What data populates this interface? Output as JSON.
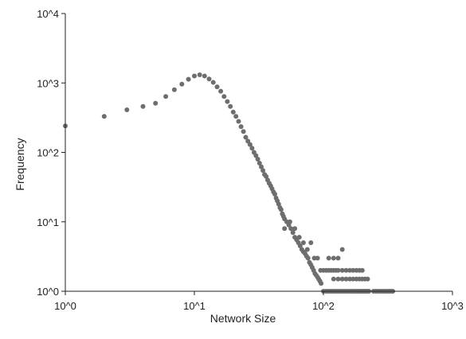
{
  "chart_data": {
    "type": "scatter",
    "title": "",
    "xlabel": "Network Size",
    "ylabel": "Frequency",
    "xscale": "log",
    "yscale": "log",
    "xlim": [
      1,
      1000
    ],
    "ylim": [
      1,
      10000
    ],
    "x_ticks": [
      {
        "value": 1,
        "label": "10^0"
      },
      {
        "value": 10,
        "label": "10^1"
      },
      {
        "value": 100,
        "label": "10^2"
      },
      {
        "value": 1000,
        "label": "10^3"
      }
    ],
    "y_ticks": [
      {
        "value": 1,
        "label": "10^0"
      },
      {
        "value": 10,
        "label": "10^1"
      },
      {
        "value": 100,
        "label": "10^2"
      },
      {
        "value": 1000,
        "label": "10^3"
      },
      {
        "value": 10000,
        "label": "10^4"
      }
    ],
    "grid": false,
    "legend": "none",
    "marker_color": "#6e6e6e",
    "points": [
      [
        1,
        240
      ],
      [
        2,
        330
      ],
      [
        3,
        410
      ],
      [
        4,
        460
      ],
      [
        5,
        510
      ],
      [
        6,
        640
      ],
      [
        7,
        800
      ],
      [
        8,
        960
      ],
      [
        9,
        1130
      ],
      [
        10,
        1260
      ],
      [
        11,
        1310
      ],
      [
        12,
        1260
      ],
      [
        13,
        1140
      ],
      [
        14,
        1020
      ],
      [
        15,
        880
      ],
      [
        16,
        760
      ],
      [
        17,
        640
      ],
      [
        18,
        540
      ],
      [
        19,
        460
      ],
      [
        20,
        380
      ],
      [
        21,
        330
      ],
      [
        22,
        280
      ],
      [
        23,
        235
      ],
      [
        24,
        200
      ],
      [
        25,
        165
      ],
      [
        26,
        145
      ],
      [
        27,
        130
      ],
      [
        28,
        115
      ],
      [
        29,
        100
      ],
      [
        30,
        90
      ],
      [
        31,
        80
      ],
      [
        32,
        70
      ],
      [
        33,
        62
      ],
      [
        34,
        55
      ],
      [
        35,
        48
      ],
      [
        36,
        45
      ],
      [
        37,
        40
      ],
      [
        38,
        36
      ],
      [
        39,
        33
      ],
      [
        40,
        30
      ],
      [
        41,
        27
      ],
      [
        42,
        25
      ],
      [
        43,
        22
      ],
      [
        44,
        20
      ],
      [
        45,
        18
      ],
      [
        46,
        16
      ],
      [
        47,
        15
      ],
      [
        48,
        13
      ],
      [
        49,
        12
      ],
      [
        50,
        11
      ],
      [
        52,
        10
      ],
      [
        54,
        9
      ],
      [
        56,
        8
      ],
      [
        58,
        7
      ],
      [
        60,
        6
      ],
      [
        62,
        5.5
      ],
      [
        64,
        5
      ],
      [
        66,
        4.5
      ],
      [
        68,
        4
      ],
      [
        70,
        3.7
      ],
      [
        72,
        3.5
      ],
      [
        74,
        3.2
      ],
      [
        76,
        3
      ],
      [
        78,
        2.6
      ],
      [
        80,
        2.4
      ],
      [
        82,
        2.2
      ],
      [
        84,
        2
      ],
      [
        86,
        1.8
      ],
      [
        88,
        1.7
      ],
      [
        90,
        1.6
      ],
      [
        92,
        1.5
      ],
      [
        94,
        1.4
      ],
      [
        96,
        1.3
      ],
      [
        50,
        8
      ],
      [
        55,
        10
      ],
      [
        60,
        8
      ],
      [
        65,
        6
      ],
      [
        70,
        5
      ],
      [
        75,
        4
      ],
      [
        80,
        5
      ],
      [
        85,
        3
      ],
      [
        90,
        3
      ],
      [
        95,
        2
      ],
      [
        100,
        2
      ],
      [
        105,
        2
      ],
      [
        110,
        2
      ],
      [
        115,
        2
      ],
      [
        120,
        2
      ],
      [
        125,
        2
      ],
      [
        130,
        2
      ],
      [
        110,
        3
      ],
      [
        120,
        3
      ],
      [
        130,
        3
      ],
      [
        140,
        4
      ],
      [
        120,
        1.5
      ],
      [
        130,
        1.5
      ],
      [
        140,
        1.5
      ],
      [
        150,
        1.5
      ],
      [
        160,
        1.5
      ],
      [
        170,
        1.5
      ],
      [
        180,
        1.5
      ],
      [
        190,
        1.5
      ],
      [
        200,
        1.5
      ],
      [
        210,
        1.5
      ],
      [
        220,
        1.5
      ],
      [
        140,
        2
      ],
      [
        150,
        2
      ],
      [
        160,
        2
      ],
      [
        170,
        2
      ],
      [
        180,
        2
      ],
      [
        190,
        2
      ],
      [
        200,
        2
      ],
      [
        100,
        1
      ],
      [
        104,
        1
      ],
      [
        108,
        1
      ],
      [
        112,
        1
      ],
      [
        116,
        1
      ],
      [
        120,
        1
      ],
      [
        124,
        1
      ],
      [
        128,
        1
      ],
      [
        132,
        1
      ],
      [
        136,
        1
      ],
      [
        140,
        1
      ],
      [
        145,
        1
      ],
      [
        150,
        1
      ],
      [
        155,
        1
      ],
      [
        160,
        1
      ],
      [
        165,
        1
      ],
      [
        170,
        1
      ],
      [
        175,
        1
      ],
      [
        180,
        1
      ],
      [
        185,
        1
      ],
      [
        190,
        1
      ],
      [
        195,
        1
      ],
      [
        200,
        1
      ],
      [
        205,
        1
      ],
      [
        210,
        1
      ],
      [
        215,
        1
      ],
      [
        220,
        1
      ],
      [
        225,
        1
      ],
      [
        245,
        1
      ],
      [
        255,
        1
      ],
      [
        265,
        1
      ],
      [
        275,
        1
      ],
      [
        285,
        1
      ],
      [
        295,
        1
      ],
      [
        305,
        1
      ],
      [
        315,
        1
      ],
      [
        325,
        1
      ],
      [
        335,
        1
      ],
      [
        345,
        1
      ]
    ]
  }
}
